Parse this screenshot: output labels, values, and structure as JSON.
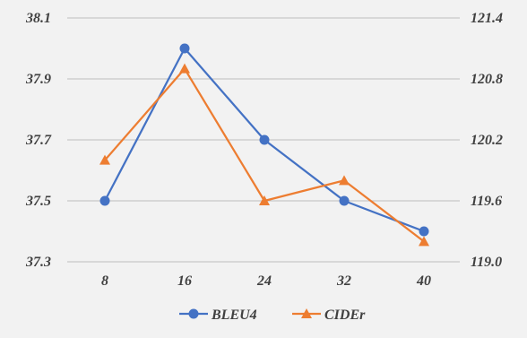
{
  "chart_data": {
    "type": "line",
    "title": "",
    "xlabel": "",
    "ylabel": "",
    "categories": [
      "8",
      "16",
      "24",
      "32",
      "40"
    ],
    "ylim_left": [
      37.3,
      38.1
    ],
    "yticks_left": [
      "37.3",
      "37.5",
      "37.7",
      "37.9",
      "38.1"
    ],
    "ylim_right": [
      119.0,
      121.4
    ],
    "yticks_right": [
      "119.0",
      "119.6",
      "120.2",
      "120.8",
      "121.4"
    ],
    "grid": true,
    "legend_position": "bottom",
    "series": [
      {
        "name": "BLEU4",
        "axis": "left",
        "marker": "circle",
        "color": "#4472c4",
        "values": [
          37.5,
          38.0,
          37.7,
          37.5,
          37.4
        ]
      },
      {
        "name": "CIDEr",
        "axis": "right",
        "marker": "triangle",
        "color": "#ed7d31",
        "values": [
          120.0,
          120.9,
          119.6,
          119.8,
          119.2
        ]
      }
    ]
  }
}
